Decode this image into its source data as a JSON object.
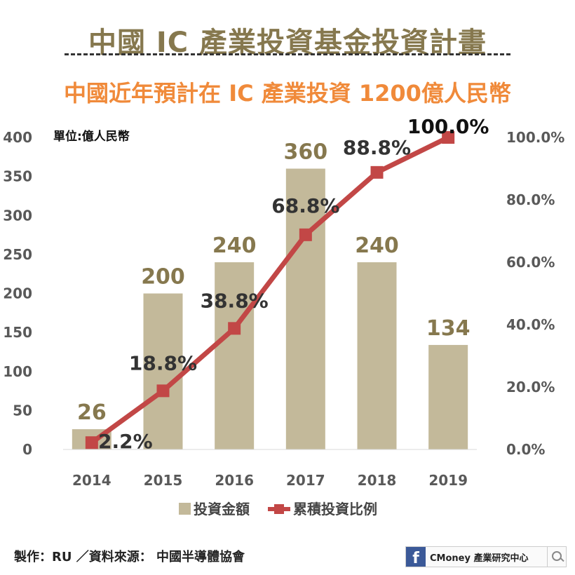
{
  "title": "中國 IC 產業投資基金投資計畫",
  "subtitle": "中國近年預計在 IC 產業投資 1200億人民幣",
  "unit_label": "單位:億人民幣",
  "footer": "製作：RU ／資料來源： 中國半導體協會",
  "brand": {
    "text": "CMoney 產業研究中心",
    "icon": "facebook-icon"
  },
  "colors": {
    "bar": "#c3b99a",
    "line": "#c24746",
    "title": "#86784e",
    "subtitle": "#f08a3a",
    "bar_label": "#86784e",
    "line_label": "#333333"
  },
  "chart_data": {
    "type": "bar+line",
    "categories": [
      "2014",
      "2015",
      "2016",
      "2017",
      "2018",
      "2019"
    ],
    "series": [
      {
        "name": "投資金額",
        "type": "bar",
        "axis": "left",
        "values": [
          26,
          200,
          240,
          360,
          240,
          134
        ],
        "labels": [
          "26",
          "200",
          "240",
          "360",
          "240",
          "134"
        ]
      },
      {
        "name": "累積投資比例",
        "type": "line",
        "axis": "right",
        "values": [
          2.2,
          18.8,
          38.8,
          68.8,
          88.8,
          100.0
        ],
        "labels": [
          "2.2%",
          "18.8%",
          "38.8%",
          "68.8%",
          "88.8%",
          "100.0%"
        ]
      }
    ],
    "left_ticks": [
      "0",
      "50",
      "100",
      "150",
      "200",
      "250",
      "300",
      "350",
      "400"
    ],
    "right_ticks": [
      "0.0%",
      "20.0%",
      "40.0%",
      "60.0%",
      "80.0%",
      "100.0%"
    ],
    "ylim_left": [
      0,
      400
    ],
    "ylim_right": [
      0,
      100
    ],
    "legend_position": "bottom",
    "grid": false
  }
}
